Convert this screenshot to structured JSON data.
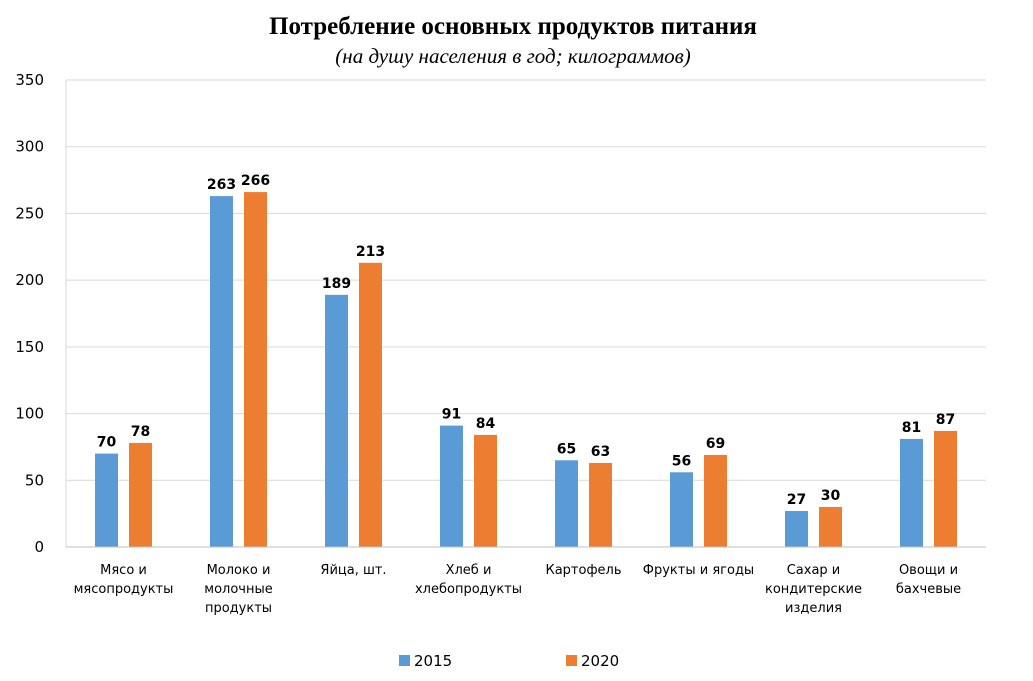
{
  "chart_data": {
    "type": "bar",
    "title": "Потребление основных продуктов питания",
    "subtitle": "(на душу населения в год; килограммов)",
    "categories": [
      [
        "Мясо и",
        "мясопродукты"
      ],
      [
        "Молоко и",
        "молочные",
        "продукты"
      ],
      [
        "Яйца, шт."
      ],
      [
        "Хлеб и",
        "хлебопродукты"
      ],
      [
        "Картофель"
      ],
      [
        "Фрукты и ягоды"
      ],
      [
        "Сахар и",
        "кондитерские",
        "изделия"
      ],
      [
        "Овощи и",
        "бахчевые"
      ]
    ],
    "series": [
      {
        "name": "2015",
        "color": "#5B9BD5",
        "values": [
          70,
          263,
          189,
          91,
          65,
          56,
          27,
          81
        ]
      },
      {
        "name": "2020",
        "color": "#ED7D31",
        "values": [
          78,
          266,
          213,
          84,
          63,
          69,
          30,
          87
        ]
      }
    ],
    "ylim": [
      0,
      350
    ],
    "yticks": [
      0,
      50,
      100,
      150,
      200,
      250,
      300,
      350
    ],
    "grid": true,
    "legend_position": "bottom"
  }
}
